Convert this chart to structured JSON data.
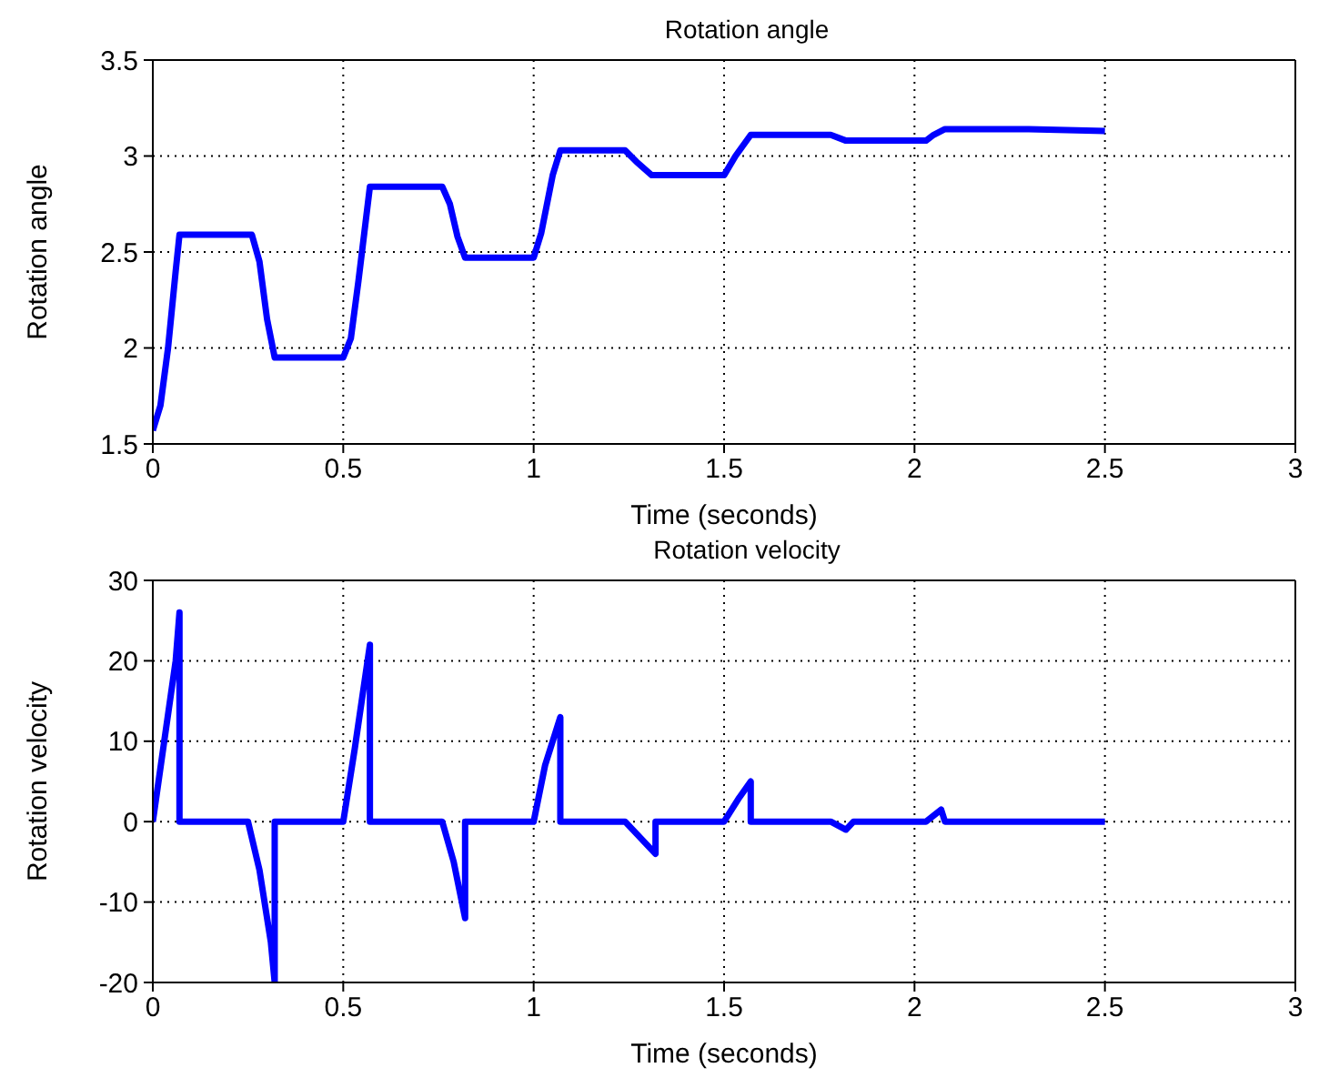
{
  "chart_data": [
    {
      "type": "line",
      "title": "Rotation angle",
      "xlabel": "Time (seconds)",
      "ylabel": "Rotation angle",
      "xlim": [
        0,
        3
      ],
      "xticks": [
        0,
        0.5,
        1,
        1.5,
        2,
        2.5,
        3
      ],
      "ylim": [
        1.5,
        3.5
      ],
      "yticks": [
        1.5,
        2,
        2.5,
        3,
        3.5
      ],
      "grid": true,
      "marker": "none",
      "line_style": "solid",
      "series": [
        {
          "color": "#0000ff",
          "x": [
            0,
            0.02,
            0.04,
            0.06,
            0.07,
            0.26,
            0.28,
            0.3,
            0.32,
            0.5,
            0.52,
            0.54,
            0.57,
            0.76,
            0.78,
            0.8,
            0.82,
            1.0,
            1.02,
            1.05,
            1.07,
            1.24,
            1.27,
            1.31,
            1.5,
            1.53,
            1.57,
            1.78,
            1.82,
            2.03,
            2.05,
            2.08,
            2.3,
            2.5
          ],
          "values": [
            1.57,
            1.7,
            2.0,
            2.4,
            2.59,
            2.59,
            2.45,
            2.15,
            1.95,
            1.95,
            2.05,
            2.35,
            2.84,
            2.84,
            2.75,
            2.58,
            2.47,
            2.47,
            2.6,
            2.9,
            3.03,
            3.03,
            2.97,
            2.9,
            2.9,
            3.0,
            3.11,
            3.11,
            3.08,
            3.08,
            3.11,
            3.14,
            3.14,
            3.13
          ]
        }
      ]
    },
    {
      "type": "line",
      "title": "Rotation velocity",
      "xlabel": "Time (seconds)",
      "ylabel": "Rotation velocity",
      "xlim": [
        0,
        3
      ],
      "xticks": [
        0,
        0.5,
        1,
        1.5,
        2,
        2.5,
        3
      ],
      "ylim": [
        -20,
        30
      ],
      "yticks": [
        -20,
        -10,
        0,
        10,
        20,
        30
      ],
      "grid": true,
      "marker": "none",
      "line_style": "solid",
      "series": [
        {
          "color": "#0000ff",
          "x": [
            0,
            0.03,
            0.06,
            0.07,
            0.07,
            0.25,
            0.28,
            0.31,
            0.32,
            0.32,
            0.5,
            0.53,
            0.57,
            0.57,
            0.76,
            0.79,
            0.82,
            0.82,
            1.0,
            1.03,
            1.07,
            1.07,
            1.24,
            1.28,
            1.32,
            1.32,
            1.5,
            1.54,
            1.57,
            1.57,
            1.78,
            1.82,
            1.84,
            2.03,
            2.07,
            2.08,
            2.3,
            2.5
          ],
          "values": [
            0,
            10,
            20,
            26,
            0,
            0,
            -6,
            -15,
            -20,
            0,
            0,
            9,
            22,
            0,
            0,
            -5,
            -12,
            0,
            0,
            7,
            13,
            0,
            0,
            -2,
            -4,
            0,
            0,
            3,
            5,
            0,
            0,
            -1,
            0,
            0,
            1.5,
            0,
            0,
            0
          ]
        }
      ]
    }
  ]
}
